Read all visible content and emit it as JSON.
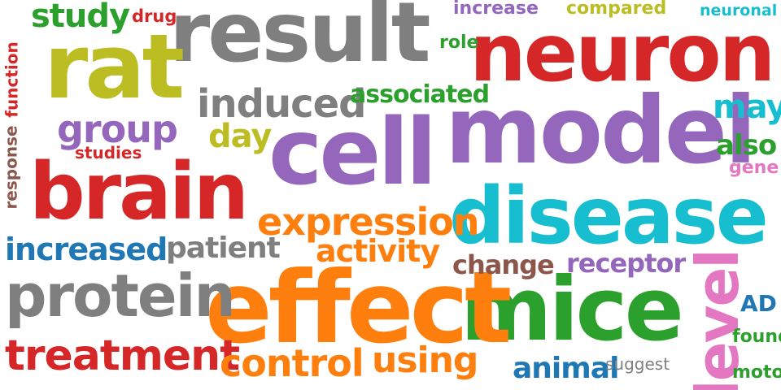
{
  "palette": {
    "red": "#d62728",
    "gray": "#7f7f7f",
    "olive": "#bcbd22",
    "purple": "#9467bd",
    "cyan": "#17becf",
    "green": "#2ca02c",
    "orange": "#ff7f0e",
    "blue": "#1f77b4",
    "brown": "#8c564b",
    "pink": "#e377c2"
  },
  "words": [
    {
      "id": "result",
      "text": "result",
      "color": "#7f7f7f"
    },
    {
      "id": "neuron",
      "text": "neuron",
      "color": "#d62728"
    },
    {
      "id": "rat",
      "text": "rat",
      "color": "#bcbd22"
    },
    {
      "id": "model",
      "text": "model",
      "color": "#9467bd"
    },
    {
      "id": "cell",
      "text": "cell",
      "color": "#9467bd"
    },
    {
      "id": "brain",
      "text": "brain",
      "color": "#d62728"
    },
    {
      "id": "disease",
      "text": "disease",
      "color": "#17becf"
    },
    {
      "id": "mice",
      "text": "mice",
      "color": "#2ca02c"
    },
    {
      "id": "effect",
      "text": "effect",
      "color": "#ff7f0e"
    },
    {
      "id": "protein",
      "text": "protein",
      "color": "#7f7f7f"
    },
    {
      "id": "treatment",
      "text": "treatment",
      "color": "#d62728"
    },
    {
      "id": "expression",
      "text": "expression",
      "color": "#ff7f0e"
    },
    {
      "id": "level",
      "text": "level",
      "color": "#e377c2"
    },
    {
      "id": "induced",
      "text": "induced",
      "color": "#7f7f7f"
    },
    {
      "id": "group",
      "text": "group",
      "color": "#9467bd"
    },
    {
      "id": "study",
      "text": "study",
      "color": "#2ca02c"
    },
    {
      "id": "control",
      "text": "control",
      "color": "#ff7f0e"
    },
    {
      "id": "using",
      "text": "using",
      "color": "#ff7f0e"
    },
    {
      "id": "increased",
      "text": "increased",
      "color": "#1f77b4"
    },
    {
      "id": "activity",
      "text": "activity",
      "color": "#ff7f0e"
    },
    {
      "id": "patient",
      "text": "patient",
      "color": "#7f7f7f"
    },
    {
      "id": "associated",
      "text": "associated",
      "color": "#2ca02c"
    },
    {
      "id": "day",
      "text": "day",
      "color": "#bcbd22"
    },
    {
      "id": "may",
      "text": "may",
      "color": "#17becf"
    },
    {
      "id": "also",
      "text": "also",
      "color": "#2ca02c"
    },
    {
      "id": "change",
      "text": "change",
      "color": "#8c564b"
    },
    {
      "id": "receptor",
      "text": "receptor",
      "color": "#9467bd"
    },
    {
      "id": "animal",
      "text": "animal",
      "color": "#1f77b4"
    },
    {
      "id": "increase",
      "text": "increase",
      "color": "#9467bd"
    },
    {
      "id": "compared",
      "text": "compared",
      "color": "#bcbd22"
    },
    {
      "id": "neuronal",
      "text": "neuronal",
      "color": "#17becf"
    },
    {
      "id": "drug",
      "text": "drug",
      "color": "#d62728"
    },
    {
      "id": "role",
      "text": "role",
      "color": "#2ca02c"
    },
    {
      "id": "function",
      "text": "function",
      "color": "#d62728"
    },
    {
      "id": "response",
      "text": "response",
      "color": "#8c564b"
    },
    {
      "id": "studies",
      "text": "studies",
      "color": "#d62728"
    },
    {
      "id": "gene",
      "text": "gene",
      "color": "#e377c2"
    },
    {
      "id": "AD",
      "text": "AD",
      "color": "#1f77b4"
    },
    {
      "id": "found",
      "text": "found",
      "color": "#2ca02c"
    },
    {
      "id": "motor",
      "text": "motor",
      "color": "#2ca02c"
    },
    {
      "id": "suggest",
      "text": "suggest",
      "color": "#7f7f7f"
    }
  ]
}
